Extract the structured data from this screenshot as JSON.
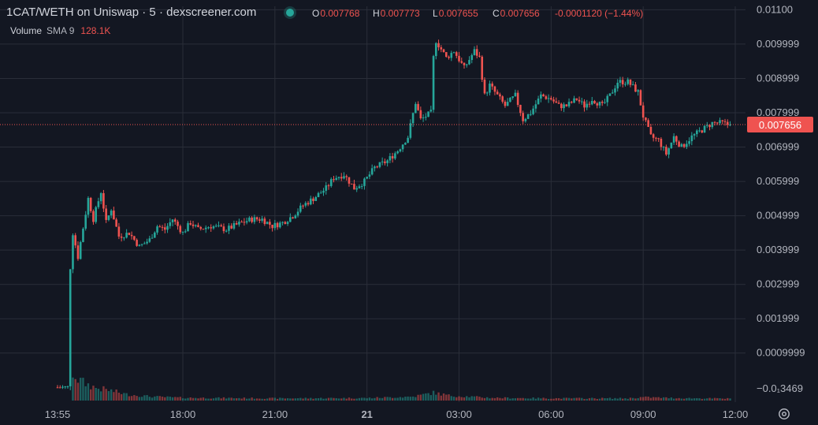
{
  "header": {
    "title": "1CAT/WETH on Uniswap · 5 · dexscreener.com",
    "o_label": "O",
    "o_value": "0.007768",
    "h_label": "H",
    "h_value": "0.007773",
    "l_label": "L",
    "l_value": "0.007655",
    "c_label": "C",
    "c_value": "0.007656",
    "change": "-0.0001120 (−1.44%)"
  },
  "volume_legend": {
    "label": "Volume",
    "sma": "SMA 9",
    "value": "128.1K"
  },
  "icons": {
    "status": "live-dot-icon",
    "settings": "gear-icon"
  },
  "colors": {
    "background": "#131722",
    "up": "#26a69a",
    "down": "#ef5350",
    "grid": "#2a2e39",
    "text": "#d1d4dc"
  },
  "chart_data": {
    "type": "candlestick",
    "ylim": [
      -0.00043,
      0.0111
    ],
    "y_ticks": [
      {
        "value": 0.011,
        "label": "0.01100"
      },
      {
        "value": 0.009999,
        "label": "0.009999"
      },
      {
        "value": 0.008999,
        "label": "0.008999"
      },
      {
        "value": 0.007999,
        "label": "0.007999"
      },
      {
        "value": 0.006999,
        "label": "0.006999"
      },
      {
        "value": 0.005999,
        "label": "0.005999"
      },
      {
        "value": 0.004999,
        "label": "0.004999"
      },
      {
        "value": 0.003999,
        "label": "0.003999"
      },
      {
        "value": 0.002999,
        "label": "0.002999"
      },
      {
        "value": 0.001999,
        "label": "0.001999"
      },
      {
        "value": 0.0009999,
        "label": "0.0009999"
      },
      {
        "value": -3.469e-05,
        "label": "−0.0₁3469"
      }
    ],
    "x_ticks": [
      {
        "t": "13:55",
        "label": "13:55",
        "bold": false
      },
      {
        "t": "18:00",
        "label": "18:00",
        "bold": false
      },
      {
        "t": "21:00",
        "label": "21:00",
        "bold": false
      },
      {
        "t": "24:00",
        "label": "21",
        "bold": true
      },
      {
        "t": "27:00",
        "label": "03:00",
        "bold": false
      },
      {
        "t": "30:00",
        "label": "06:00",
        "bold": false
      },
      {
        "t": "33:00",
        "label": "09:00",
        "bold": false
      },
      {
        "t": "36:00",
        "label": "12:00",
        "bold": false
      }
    ],
    "last_price": {
      "value": 0.007656,
      "label": "0.007656"
    },
    "price_path": [
      [
        "13:55",
        0.0
      ],
      [
        "14:20",
        0.0
      ],
      [
        "14:25",
        0.0035
      ],
      [
        "14:30",
        0.0045
      ],
      [
        "14:40",
        0.0038
      ],
      [
        "15:00",
        0.0055
      ],
      [
        "15:10",
        0.0049
      ],
      [
        "15:25",
        0.0057
      ],
      [
        "15:35",
        0.0048
      ],
      [
        "15:45",
        0.0052
      ],
      [
        "16:00",
        0.0044
      ],
      [
        "16:20",
        0.0045
      ],
      [
        "16:40",
        0.0041
      ],
      [
        "17:00",
        0.0043
      ],
      [
        "17:15",
        0.0047
      ],
      [
        "17:30",
        0.0046
      ],
      [
        "17:45",
        0.0049
      ],
      [
        "18:05",
        0.0045
      ],
      [
        "18:20",
        0.0048
      ],
      [
        "18:35",
        0.0046
      ],
      [
        "19:00",
        0.0047
      ],
      [
        "19:30",
        0.0046
      ],
      [
        "20:00",
        0.0048
      ],
      [
        "20:20",
        0.0049
      ],
      [
        "20:40",
        0.0049
      ],
      [
        "21:00",
        0.0047
      ],
      [
        "21:20",
        0.0048
      ],
      [
        "21:40",
        0.005
      ],
      [
        "22:00",
        0.0053
      ],
      [
        "22:20",
        0.0055
      ],
      [
        "22:45",
        0.0058
      ],
      [
        "23:00",
        0.0061
      ],
      [
        "23:20",
        0.0062
      ],
      [
        "23:40",
        0.0058
      ],
      [
        "24:00",
        0.006
      ],
      [
        "24:20",
        0.0064
      ],
      [
        "24:45",
        0.0066
      ],
      [
        "25:05",
        0.0069
      ],
      [
        "25:25",
        0.0073
      ],
      [
        "25:40",
        0.0083
      ],
      [
        "25:50",
        0.0078
      ],
      [
        "26:10",
        0.008
      ],
      [
        "26:15",
        0.0096
      ],
      [
        "26:20",
        0.0101
      ],
      [
        "26:40",
        0.0096
      ],
      [
        "26:55",
        0.0098
      ],
      [
        "27:15",
        0.0093
      ],
      [
        "27:35",
        0.0098
      ],
      [
        "27:45",
        0.0096
      ],
      [
        "27:55",
        0.0085
      ],
      [
        "28:05",
        0.0088
      ],
      [
        "28:20",
        0.0085
      ],
      [
        "28:35",
        0.0082
      ],
      [
        "28:55",
        0.0085
      ],
      [
        "29:10",
        0.0078
      ],
      [
        "29:25",
        0.008
      ],
      [
        "29:45",
        0.0085
      ],
      [
        "30:05",
        0.0084
      ],
      [
        "30:20",
        0.0082
      ],
      [
        "30:35",
        0.0082
      ],
      [
        "30:55",
        0.0084
      ],
      [
        "31:10",
        0.0082
      ],
      [
        "31:25",
        0.0084
      ],
      [
        "31:45",
        0.0082
      ],
      [
        "32:00",
        0.0085
      ],
      [
        "32:15",
        0.0089
      ],
      [
        "32:35",
        0.0089
      ],
      [
        "32:55",
        0.0086
      ],
      [
        "33:05",
        0.0079
      ],
      [
        "33:20",
        0.0073
      ],
      [
        "33:35",
        0.0072
      ],
      [
        "33:50",
        0.0068
      ],
      [
        "34:05",
        0.0073
      ],
      [
        "34:20",
        0.007
      ],
      [
        "34:40",
        0.0073
      ],
      [
        "35:00",
        0.0075
      ],
      [
        "35:20",
        0.0077
      ],
      [
        "35:40",
        0.0077
      ],
      [
        "35:50",
        0.007656
      ]
    ],
    "volume_path": [
      [
        "13:55",
        0.0
      ],
      [
        "14:20",
        0.0
      ],
      [
        "14:25",
        1.0
      ],
      [
        "14:35",
        0.75
      ],
      [
        "14:50",
        0.6
      ],
      [
        "15:10",
        0.45
      ],
      [
        "15:40",
        0.35
      ],
      [
        "16:10",
        0.22
      ],
      [
        "17:00",
        0.14
      ],
      [
        "18:00",
        0.1
      ],
      [
        "21:00",
        0.08
      ],
      [
        "24:00",
        0.09
      ],
      [
        "25:30",
        0.14
      ],
      [
        "26:10",
        0.28
      ],
      [
        "26:40",
        0.18
      ],
      [
        "28:00",
        0.1
      ],
      [
        "30:00",
        0.08
      ],
      [
        "32:30",
        0.08
      ],
      [
        "33:00",
        0.12
      ],
      [
        "34:00",
        0.09
      ],
      [
        "35:50",
        0.07
      ]
    ]
  }
}
